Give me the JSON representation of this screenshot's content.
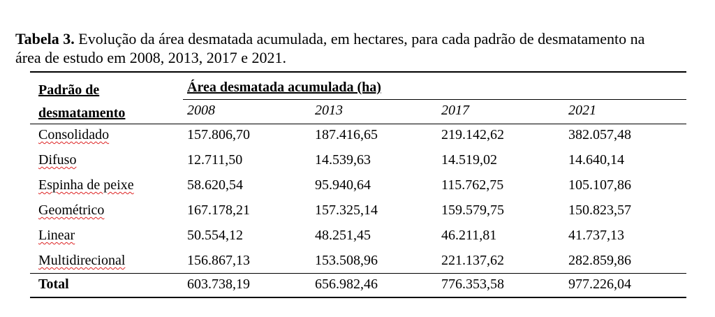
{
  "caption": {
    "label": "Tabela 3.",
    "text": "Evolução da área desmatada acumulada, em hectares, para cada padrão de desmatamento na área de estudo em 2008, 2013, 2017 e 2021."
  },
  "table": {
    "row_header": "Padrão de desmatamento",
    "group_header": "Área desmatada acumulada (ha)",
    "years": [
      "2008",
      "2013",
      "2017",
      "2021"
    ],
    "rows": [
      [
        "Consolidado",
        "157.806,70",
        "187.416,65",
        "219.142,62",
        "382.057,48"
      ],
      [
        "Difuso",
        "12.711,50",
        "14.539,63",
        "14.519,02",
        "14.640,14"
      ],
      [
        "Espinha de peixe",
        "58.620,54",
        "95.940,64",
        "115.762,75",
        "105.107,86"
      ],
      [
        "Geométrico",
        "167.178,21",
        "157.325,14",
        "159.579,75",
        "150.823,57"
      ],
      [
        "Linear",
        "50.554,12",
        "48.251,45",
        "46.211,81",
        "41.737,13"
      ],
      [
        "Multidirecional",
        "156.867,13",
        "153.508,96",
        "221.137,62",
        "282.859,86"
      ]
    ],
    "total": [
      "Total",
      "603.738,19",
      "656.982,46",
      "776.353,58",
      "977.226,04"
    ]
  }
}
